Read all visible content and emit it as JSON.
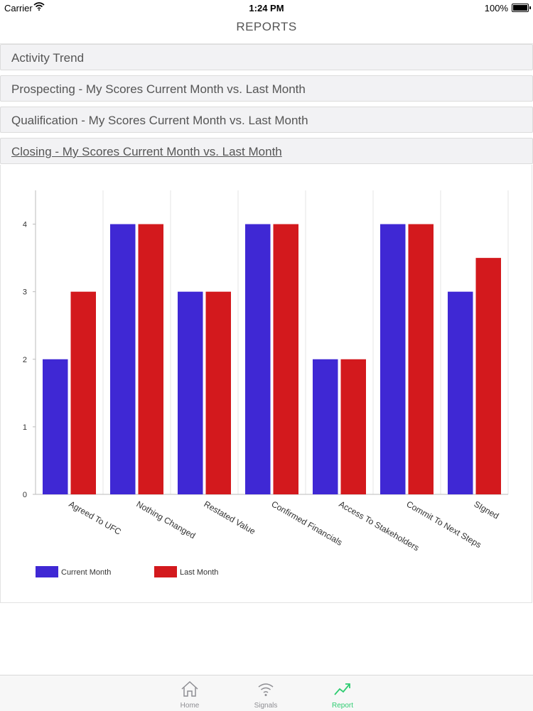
{
  "status_bar": {
    "carrier": "Carrier",
    "time": "1:24 PM",
    "battery": "100%"
  },
  "nav": {
    "title": "REPORTS"
  },
  "sections": [
    {
      "label": "Activity Trend"
    },
    {
      "label": "Prospecting - My Scores Current Month vs. Last Month"
    },
    {
      "label": "Qualification - My Scores Current Month vs. Last Month"
    },
    {
      "label": "Closing - My Scores Current Month vs. Last Month"
    }
  ],
  "chart_data": {
    "type": "bar",
    "title": "Closing - My Scores Current Month vs. Last Month",
    "categories": [
      "Agreed To UFC",
      "Nothing Changed",
      "Restated Value",
      "Confirmed Financials",
      "Access To Stakeholders",
      "Commit To Next Steps",
      "SIgned"
    ],
    "series": [
      {
        "name": "Current Month",
        "color": "#3f28d4",
        "values": [
          2,
          4,
          3,
          4,
          2,
          4,
          3
        ]
      },
      {
        "name": "Last Month",
        "color": "#d3191d",
        "values": [
          3,
          4,
          3,
          4,
          2,
          4,
          3.5
        ]
      }
    ],
    "yticks": [
      0,
      1,
      2,
      3,
      4
    ],
    "ylim": [
      0,
      4.5
    ],
    "legend_position": "bottom-left",
    "grid": "vertical"
  },
  "tabs": [
    {
      "label": "Home",
      "icon": "home-icon"
    },
    {
      "label": "Signals",
      "icon": "signals-icon"
    },
    {
      "label": "Report",
      "icon": "report-icon",
      "active_color": "#2ecc71"
    }
  ]
}
